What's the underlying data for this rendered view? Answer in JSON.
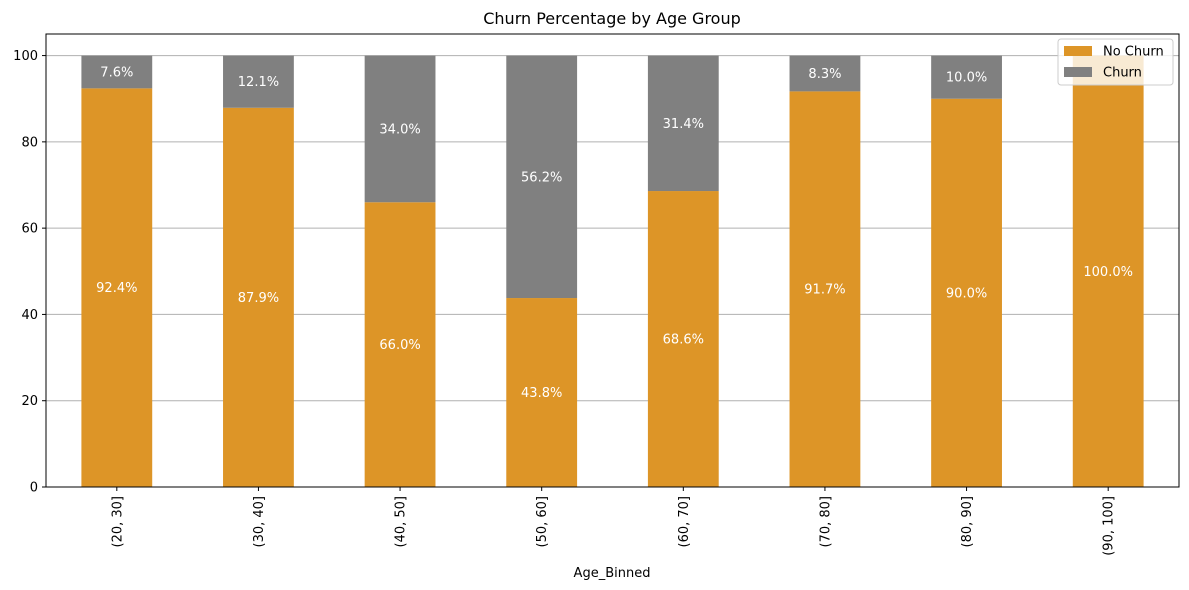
{
  "chart_data": {
    "type": "bar",
    "stacked": true,
    "title": "Churn Percentage by Age Group",
    "xlabel": "Age_Binned",
    "ylabel": "",
    "ylim": [
      0,
      105
    ],
    "yticks": [
      0,
      20,
      40,
      60,
      80,
      100
    ],
    "grid": "horizontal",
    "legend_position": "top-right",
    "categories": [
      "(20, 30]",
      "(30, 40]",
      "(40, 50]",
      "(50, 60]",
      "(60, 70]",
      "(70, 80]",
      "(80, 90]",
      "(90, 100]"
    ],
    "series": [
      {
        "name": "No Churn",
        "color": "#dd9527",
        "values": [
          92.4,
          87.9,
          66.0,
          43.8,
          68.6,
          91.7,
          90.0,
          100.0
        ],
        "labels": [
          "92.4%",
          "87.9%",
          "66.0%",
          "43.8%",
          "68.6%",
          "91.7%",
          "90.0%",
          "100.0%"
        ]
      },
      {
        "name": "Churn",
        "color": "#808080",
        "values": [
          7.6,
          12.1,
          34.0,
          56.2,
          31.4,
          8.3,
          10.0,
          0.0
        ],
        "labels": [
          "7.6%",
          "12.1%",
          "34.0%",
          "56.2%",
          "31.4%",
          "8.3%",
          "10.0%",
          ""
        ]
      }
    ]
  }
}
